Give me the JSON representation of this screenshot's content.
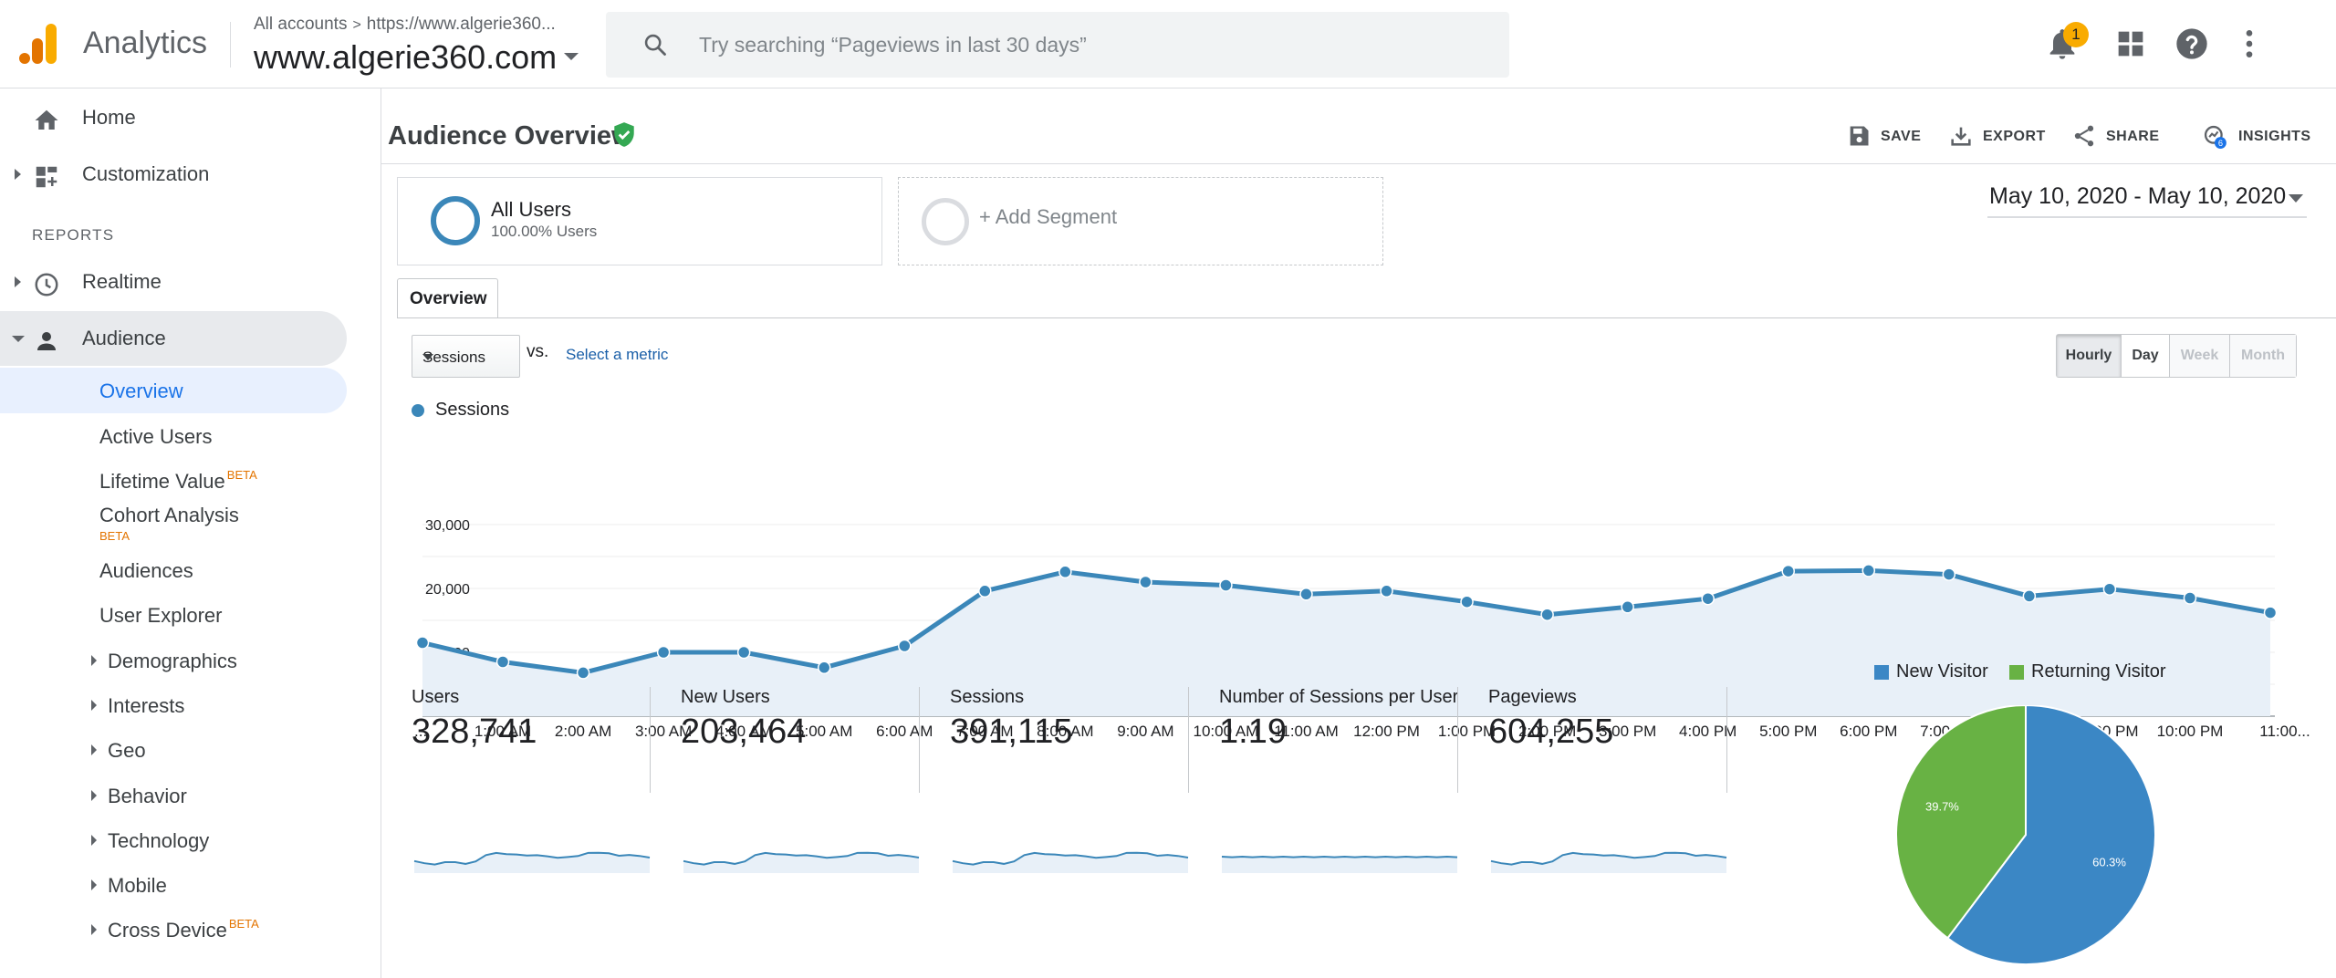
{
  "topbar": {
    "app_name": "Analytics",
    "breadcrumb_root": "All accounts",
    "breadcrumb_sep": ">",
    "breadcrumb_property": "https://www.algerie360...",
    "account_name": "www.algerie360.com",
    "search_placeholder": "Try searching “Pageviews in last 30 days”",
    "notification_count": "1",
    "icons": [
      "search-icon",
      "bell-icon",
      "apps-grid-icon",
      "help-icon",
      "more-vert-icon"
    ]
  },
  "sidebar": {
    "top_items": [
      {
        "label": "Home",
        "icon": "home-icon"
      },
      {
        "label": "Customization",
        "icon": "dashboard-icon"
      }
    ],
    "reports_header": "REPORTS",
    "report_items": [
      {
        "label": "Realtime",
        "icon": "clock-icon"
      },
      {
        "label": "Audience",
        "icon": "person-icon",
        "expanded": true
      }
    ],
    "audience_children": [
      {
        "label": "Overview",
        "selected": true
      },
      {
        "label": "Active Users"
      },
      {
        "label": "Lifetime Value",
        "badge": "BETA"
      },
      {
        "label": "Cohort Analysis",
        "badge": "BETA"
      },
      {
        "label": "Audiences"
      },
      {
        "label": "User Explorer"
      },
      {
        "label": "Demographics",
        "expandable": true
      },
      {
        "label": "Interests",
        "expandable": true
      },
      {
        "label": "Geo",
        "expandable": true
      },
      {
        "label": "Behavior",
        "expandable": true
      },
      {
        "label": "Technology",
        "expandable": true
      },
      {
        "label": "Mobile",
        "expandable": true
      },
      {
        "label": "Cross Device",
        "expandable": true,
        "badge": "BETA"
      }
    ]
  },
  "report": {
    "title": "Audience Overview",
    "actions": {
      "save": "SAVE",
      "export": "EXPORT",
      "share": "SHARE",
      "insights": "INSIGHTS",
      "insights_badge": "6"
    },
    "segments": {
      "all_users_title": "All Users",
      "all_users_sub": "100.00% Users",
      "add_segment": "+ Add Segment"
    },
    "date_range": "May 10, 2020 - May 10, 2020",
    "tab": "Overview",
    "metric_select": "Sessions",
    "vs_label": "vs.",
    "select_metric": "Select a metric",
    "granularity": [
      {
        "label": "Hourly",
        "state": "active"
      },
      {
        "label": "Day",
        "state": "normal"
      },
      {
        "label": "Week",
        "state": "disabled"
      },
      {
        "label": "Month",
        "state": "disabled"
      }
    ],
    "series_legend": "Sessions"
  },
  "scorecards": [
    {
      "name": "Users",
      "value": "328,741"
    },
    {
      "name": "New Users",
      "value": "203,464"
    },
    {
      "name": "Sessions",
      "value": "391,115"
    },
    {
      "name": "Number of Sessions per User",
      "value": "1.19"
    },
    {
      "name": "Pageviews",
      "value": "604,255"
    }
  ],
  "colors": {
    "series_blue": "#3b87b9",
    "area_fill": "#e8f0f8",
    "new_visitor": "#3b87c5",
    "returning_visitor": "#68b244",
    "accent_link": "#1a73e8",
    "logo_orange": "#f9ab00",
    "logo_dark": "#e37400"
  },
  "chart_data": [
    {
      "type": "area",
      "series": [
        {
          "name": "Sessions",
          "values": [
            11500,
            8500,
            6800,
            10000,
            10000,
            7600,
            11000,
            19600,
            22600,
            21000,
            20500,
            19100,
            19600,
            17900,
            15900,
            17100,
            18400,
            22700,
            22800,
            22200,
            18800,
            19900,
            18500,
            16200
          ]
        }
      ],
      "categories": [
        "...",
        "1:00 AM",
        "2:00 AM",
        "3:00 AM",
        "4:00 AM",
        "5:00 AM",
        "6:00 AM",
        "7:00 AM",
        "8:00 AM",
        "9:00 AM",
        "10:00 AM",
        "11:00 AM",
        "12:00 PM",
        "1:00 PM",
        "2:00 PM",
        "3:00 PM",
        "4:00 PM",
        "5:00 PM",
        "6:00 PM",
        "7:00 PM",
        "8:00 PM",
        "9:00 PM",
        "10:00 PM",
        "11:00..."
      ],
      "yticks": [
        "10,000",
        "20,000",
        "30,000"
      ],
      "ylim": [
        0,
        30000
      ],
      "grid": true
    },
    {
      "type": "pie",
      "slices": [
        {
          "name": "New Visitor",
          "value": 60.3,
          "label": "60.3%",
          "color": "#3b87c5"
        },
        {
          "name": "Returning Visitor",
          "value": 39.7,
          "label": "39.7%",
          "color": "#68b244"
        }
      ],
      "legend": "top"
    }
  ]
}
